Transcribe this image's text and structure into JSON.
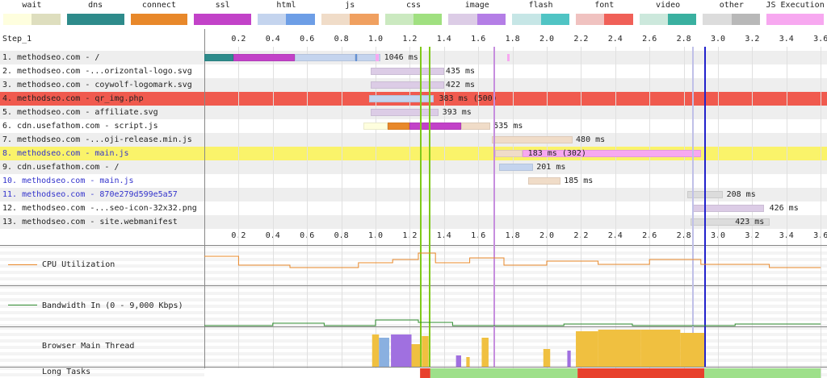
{
  "legend": [
    {
      "label": "wait",
      "c1": "#fefede",
      "c2": "#dedebe"
    },
    {
      "label": "dns",
      "c1": "#2e8b8b",
      "c2": "#2e8b8b"
    },
    {
      "label": "connect",
      "c1": "#e8882a",
      "c2": "#e8882a"
    },
    {
      "label": "ssl",
      "c1": "#c242c8",
      "c2": "#c242c8"
    },
    {
      "label": "html",
      "c1": "#c4d4ee",
      "c2": "#6d9ee6"
    },
    {
      "label": "js",
      "c1": "#f0dcc8",
      "c2": "#f0a060"
    },
    {
      "label": "css",
      "c1": "#cbe9c0",
      "c2": "#a0e080"
    },
    {
      "label": "image",
      "c1": "#dccce6",
      "c2": "#b47ee6"
    },
    {
      "label": "flash",
      "c1": "#c6e6e6",
      "c2": "#50c4c4"
    },
    {
      "label": "font",
      "c1": "#f0c2c0",
      "c2": "#f06058"
    },
    {
      "label": "video",
      "c1": "#cce8dc",
      "c2": "#3ab0a0"
    },
    {
      "label": "other",
      "c1": "#dcdcdc",
      "c2": "#b8b8b8"
    },
    {
      "label": "JS Execution",
      "c1": "#f7a8f0",
      "c2": "#f7a8f0"
    }
  ],
  "step": "Step_1",
  "ticks": [
    "0.2",
    "0.4",
    "0.6",
    "0.8",
    "1.0",
    "1.2",
    "1.4",
    "1.6",
    "1.8",
    "2.0",
    "2.2",
    "2.4",
    "2.6",
    "2.8",
    "3.0",
    "3.2",
    "3.4",
    "3.6"
  ],
  "requests": [
    {
      "label": "1. methodseo.com - /",
      "time": "1046 ms",
      "bg": "#eeeeee",
      "blue": false
    },
    {
      "label": "2. methodseo.com -...orizontal-logo.svg",
      "time": "435 ms",
      "bg": "#ffffff",
      "blue": false
    },
    {
      "label": "3. methodseo.com - coywolf-logomark.svg",
      "time": "422 ms",
      "bg": "#eeeeee",
      "blue": false
    },
    {
      "label": "4. methodseo.com - qr_img.php",
      "time": "383 ms (500)",
      "bg": "#f05a4e",
      "blue": false
    },
    {
      "label": "5. methodseo.com - affiliate.svg",
      "time": "393 ms",
      "bg": "#eeeeee",
      "blue": false
    },
    {
      "label": "6. cdn.usefathom.com - script.js",
      "time": "535 ms",
      "bg": "#ffffff",
      "blue": false
    },
    {
      "label": "7. methodseo.com -...oji-release.min.js",
      "time": "480 ms",
      "bg": "#eeeeee",
      "blue": false
    },
    {
      "label": "8. methodseo.com - main.js",
      "time": "183 ms (302)",
      "bg": "#faf36a",
      "blue": true
    },
    {
      "label": "9. cdn.usefathom.com - /",
      "time": "201 ms",
      "bg": "#eeeeee",
      "blue": false
    },
    {
      "label": "10. methodseo.com - main.js",
      "time": "185 ms",
      "bg": "#ffffff",
      "blue": true
    },
    {
      "label": "11. methodseo.com - 870e279d599e5a57",
      "time": "208 ms",
      "bg": "#eeeeee",
      "blue": true
    },
    {
      "label": "12. methodseo.com -...seo-icon-32x32.png",
      "time": "426 ms",
      "bg": "#ffffff",
      "blue": false
    },
    {
      "label": "13. methodseo.com - site.webmanifest",
      "time": "423 ms",
      "bg": "#eeeeee",
      "blue": false
    }
  ],
  "graphs": {
    "cpu": "CPU Utilization",
    "bandwidth": "Bandwidth In (0 - 9,000 Kbps)",
    "main_thread": "Browser Main Thread",
    "long_tasks": "Long Tasks"
  },
  "colors": {
    "cpu_line": "#e8882a",
    "bw_line": "#2e8b2e",
    "start_render": "#7fc81a",
    "dom_content": "#c68ede",
    "onload": "#2222cc",
    "long_task": "#e8412c",
    "idle": "#9ee08a"
  }
}
